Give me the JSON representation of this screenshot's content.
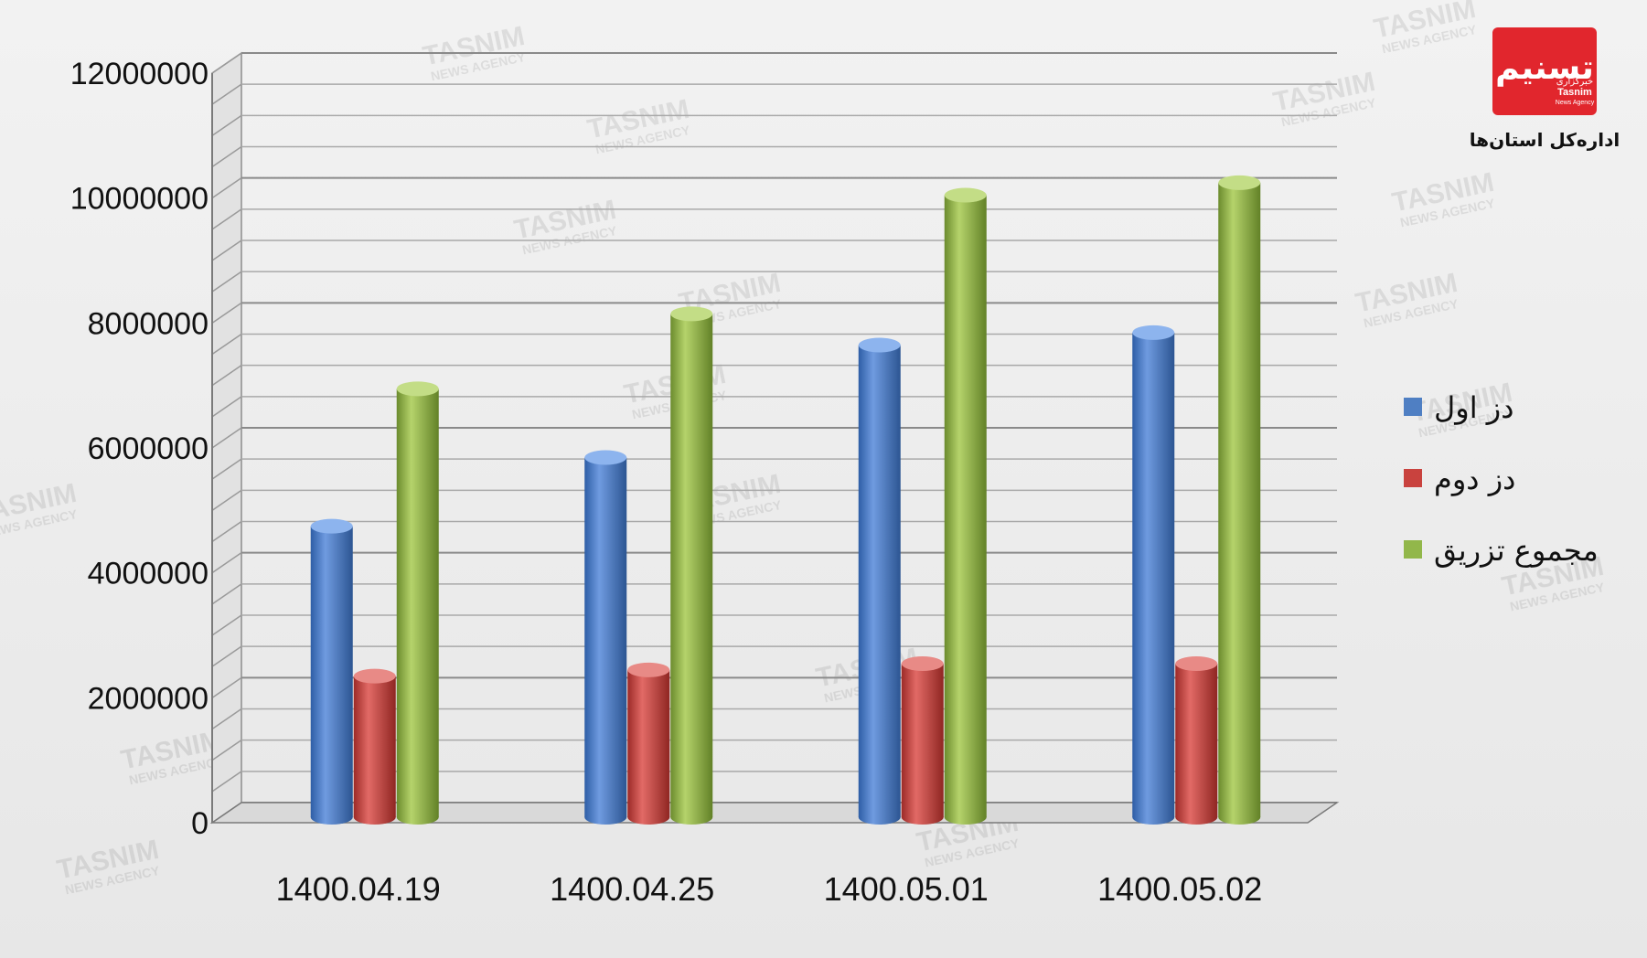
{
  "brand": {
    "logo_text": "تسنیم",
    "logo_small_fa": "خبرگزاری",
    "logo_small_en": "Tasnim",
    "logo_small_en2": "News Agency",
    "subtitle": "اداره‌کل استان‌ها"
  },
  "watermark": {
    "en": "TASNIM",
    "en_sub": "NEWS AGENCY",
    "fa1": "خبرگزاری",
    "fa2": "تسنیم"
  },
  "colors": {
    "series_1": "#4f7fc3",
    "series_2": "#c9423e",
    "series_3": "#92b74a",
    "logo_red": "#e1262d"
  },
  "chart_data": {
    "type": "bar",
    "categories": [
      "1400.04.19",
      "1400.04.25",
      "1400.05.01",
      "1400.05.02"
    ],
    "series": [
      {
        "name": "دز اول",
        "values": [
          4600000,
          5700000,
          7500000,
          7700000
        ]
      },
      {
        "name": "دز دوم",
        "values": [
          2200000,
          2300000,
          2400000,
          2400000
        ]
      },
      {
        "name": "مجموع تزریق",
        "values": [
          6800000,
          8000000,
          9900000,
          10100000
        ]
      }
    ],
    "y_ticks": [
      "0",
      "2000000",
      "4000000",
      "6000000",
      "8000000",
      "10000000",
      "12000000"
    ],
    "ylim": [
      0,
      12000000
    ],
    "grid": true,
    "legend_position": "right",
    "style": "3d-cylinder"
  }
}
